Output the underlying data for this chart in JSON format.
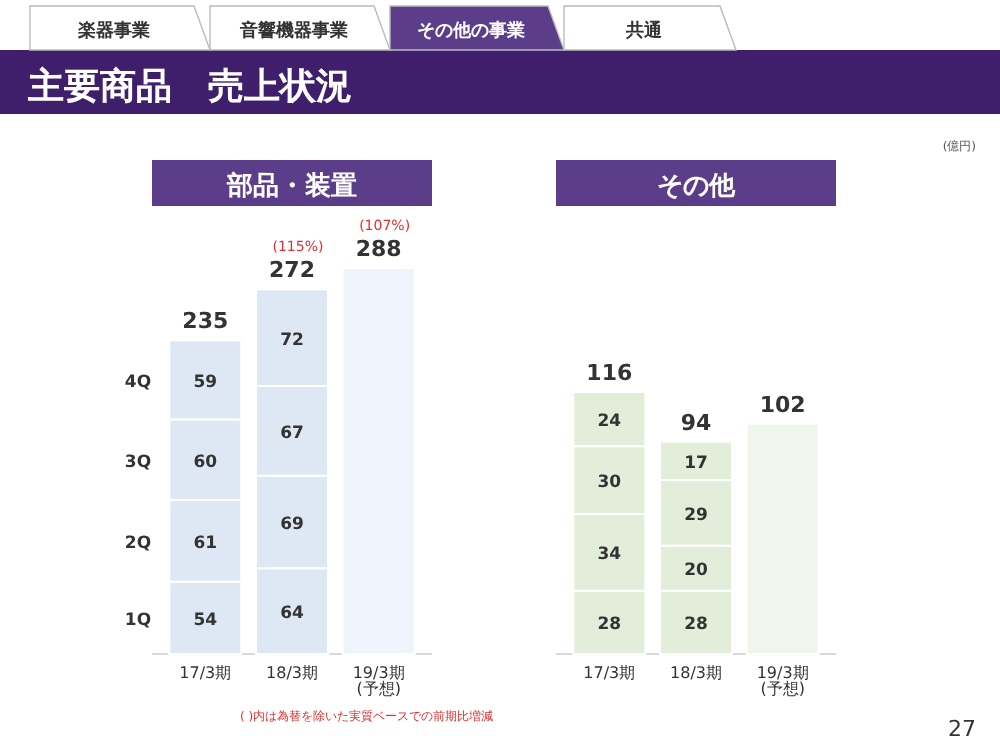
{
  "chart_data": [
    {
      "type": "other",
      "title": "主要商品　売上状況",
      "annotations": [
        "楽器事業",
        "音響機器事業",
        "その他の事業",
        "共通",
        "(億円)",
        "( )内は為替を除いた実質ベースでの前期比増減",
        "27"
      ]
    },
    {
      "type": "bar",
      "stacked": true,
      "title": "部品・装置",
      "categories": [
        "17/3期",
        "18/3期",
        "19/3期\n(予想)"
      ],
      "totals": [
        "235",
        "272",
        "288"
      ],
      "series": [
        {
          "name": "1Q",
          "color": "#dde8f4",
          "values": [
            54,
            64,
            null
          ],
          "value_labels": [
            "54",
            "64",
            null
          ]
        },
        {
          "name": "2Q",
          "color": "#dde8f4",
          "values": [
            61,
            69,
            null
          ],
          "value_labels": [
            "61",
            "69",
            null
          ]
        },
        {
          "name": "3Q",
          "color": "#dde8f4",
          "values": [
            60,
            67,
            null
          ],
          "value_labels": [
            "60",
            "67",
            null
          ]
        },
        {
          "name": "4Q",
          "color": "#dde8f4",
          "values": [
            59,
            72,
            null
          ],
          "value_labels": [
            "59",
            "72",
            null
          ]
        },
        {
          "color": "#eef4fb",
          "values": [
            null,
            null,
            288
          ]
        }
      ],
      "annotations": [
        {
          "text": "(115%)",
          "x": "18/3期",
          "y": 272
        },
        {
          "text": "(107%)",
          "x": "19/3期\n(予想)",
          "y": 288
        }
      ]
    },
    {
      "type": "bar",
      "stacked": true,
      "title": "その他",
      "categories": [
        "17/3期",
        "18/3期",
        "19/3期\n(予想)"
      ],
      "totals": [
        "116",
        "94",
        "102"
      ],
      "series": [
        {
          "color": "#e2eed9",
          "values": [
            28,
            28,
            null
          ],
          "value_labels": [
            "28",
            "28",
            null
          ]
        },
        {
          "color": "#e2eed9",
          "values": [
            34,
            20,
            null
          ],
          "value_labels": [
            "34",
            "20",
            null
          ]
        },
        {
          "color": "#e2eed9",
          "values": [
            30,
            29,
            null
          ],
          "value_labels": [
            "30",
            "29",
            null
          ]
        },
        {
          "color": "#e2eed9",
          "values": [
            24,
            17,
            null
          ],
          "value_labels": [
            "24",
            "17",
            null
          ]
        },
        {
          "color": "#f0f6ec",
          "values": [
            null,
            null,
            102
          ]
        }
      ]
    }
  ]
}
